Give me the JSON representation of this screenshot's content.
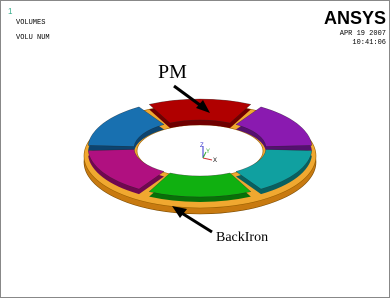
{
  "window": {
    "number": "1",
    "title": "VOLUMES",
    "subtitle": "VOLU NUM",
    "logo": "ANSYS",
    "date": "APR 19 2007",
    "time": "10:41:06"
  },
  "triad": {
    "z": "Z",
    "y": "Y",
    "x": "X"
  },
  "labels": {
    "pm": "PM",
    "back_iron": "BackIron"
  }
}
